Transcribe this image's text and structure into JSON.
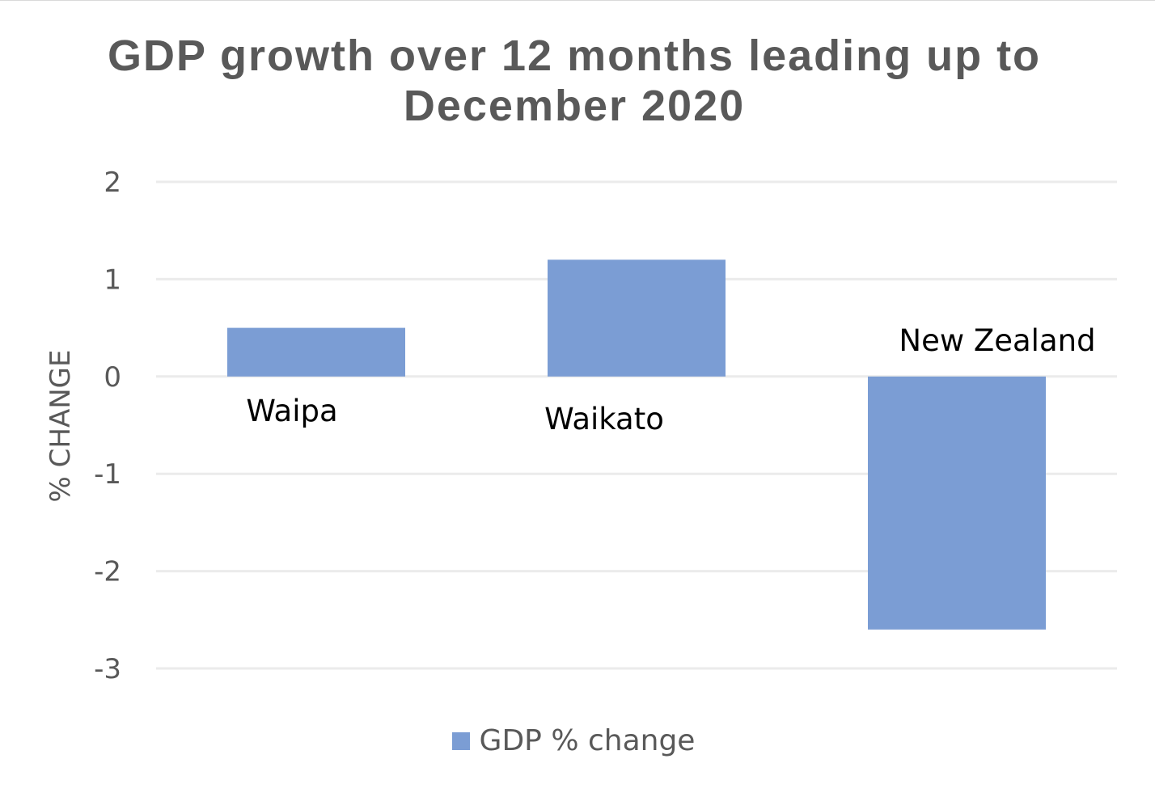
{
  "chart_data": {
    "type": "bar",
    "title": "GDP growth over 12 months leading up to December 2020",
    "xlabel": "",
    "ylabel": "% CHANGE",
    "categories": [
      "Waipa",
      "Waikato",
      "New Zealand"
    ],
    "series": [
      {
        "name": "GDP % change",
        "values": [
          0.5,
          1.2,
          -2.6
        ],
        "color": "#7b9dd4"
      }
    ],
    "ylim": [
      -3,
      2
    ],
    "yticks": [
      2,
      1,
      0,
      -1,
      -2,
      -3
    ],
    "ytick_labels": [
      "2",
      "1",
      "0",
      "-1",
      "-2",
      "-3"
    ],
    "grid": true,
    "legend_position": "bottom"
  }
}
